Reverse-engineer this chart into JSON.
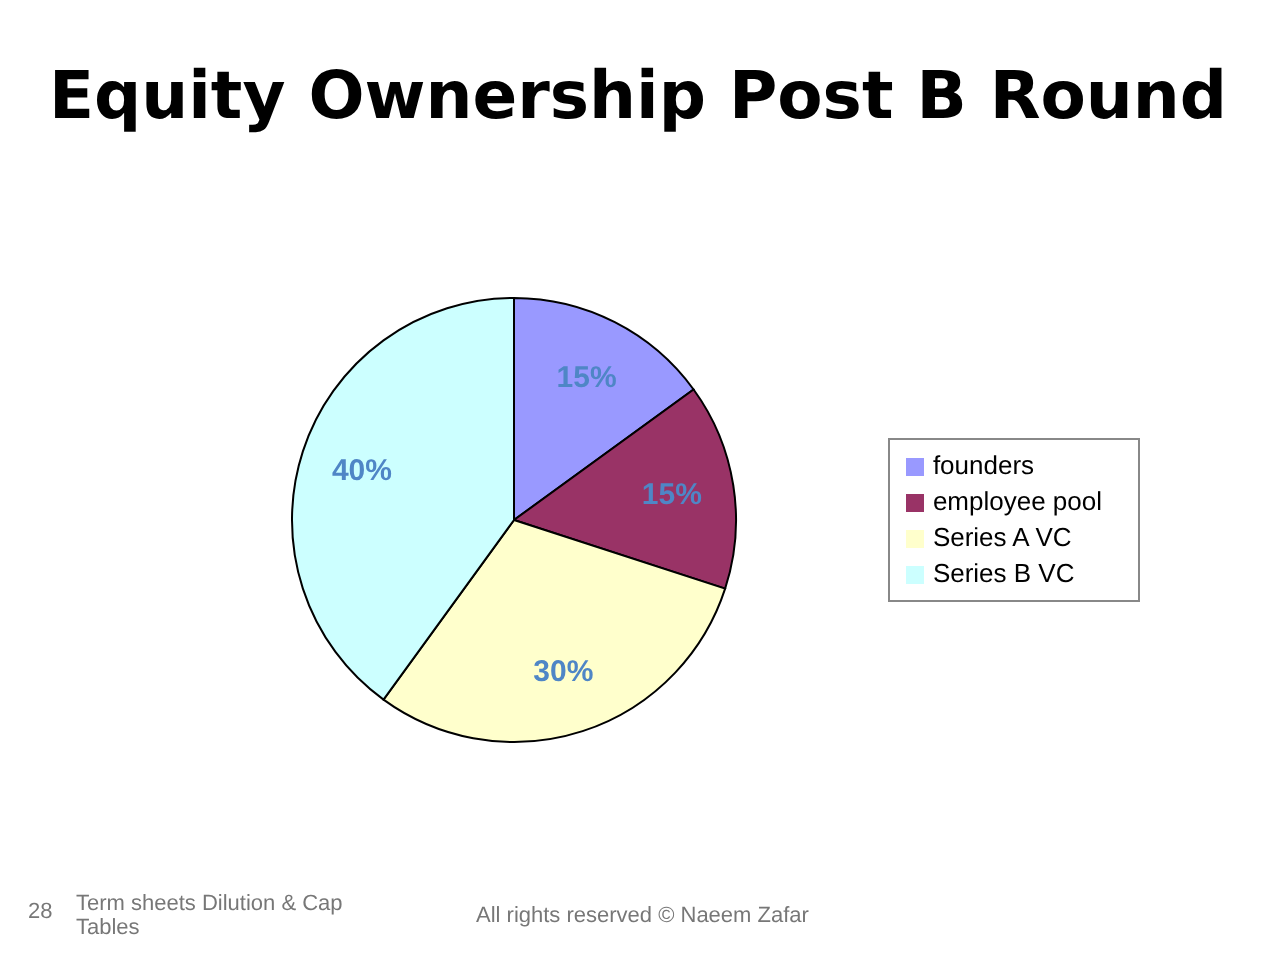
{
  "chart_data": {
    "type": "pie",
    "title": "Equity Ownership Post B Round",
    "categories": [
      "founders",
      "employee pool",
      "Series A VC",
      "Series B VC"
    ],
    "values": [
      15,
      15,
      30,
      40
    ],
    "value_labels": [
      "15%",
      "15%",
      "30%",
      "40%"
    ],
    "colors": [
      "#9999ff",
      "#993366",
      "#ffffcc",
      "#ccffff"
    ],
    "legend": "right",
    "annotations": [
      "28",
      "Term sheets Dilution & Cap Tables",
      "All rights reserved © Naeem Zafar"
    ]
  }
}
